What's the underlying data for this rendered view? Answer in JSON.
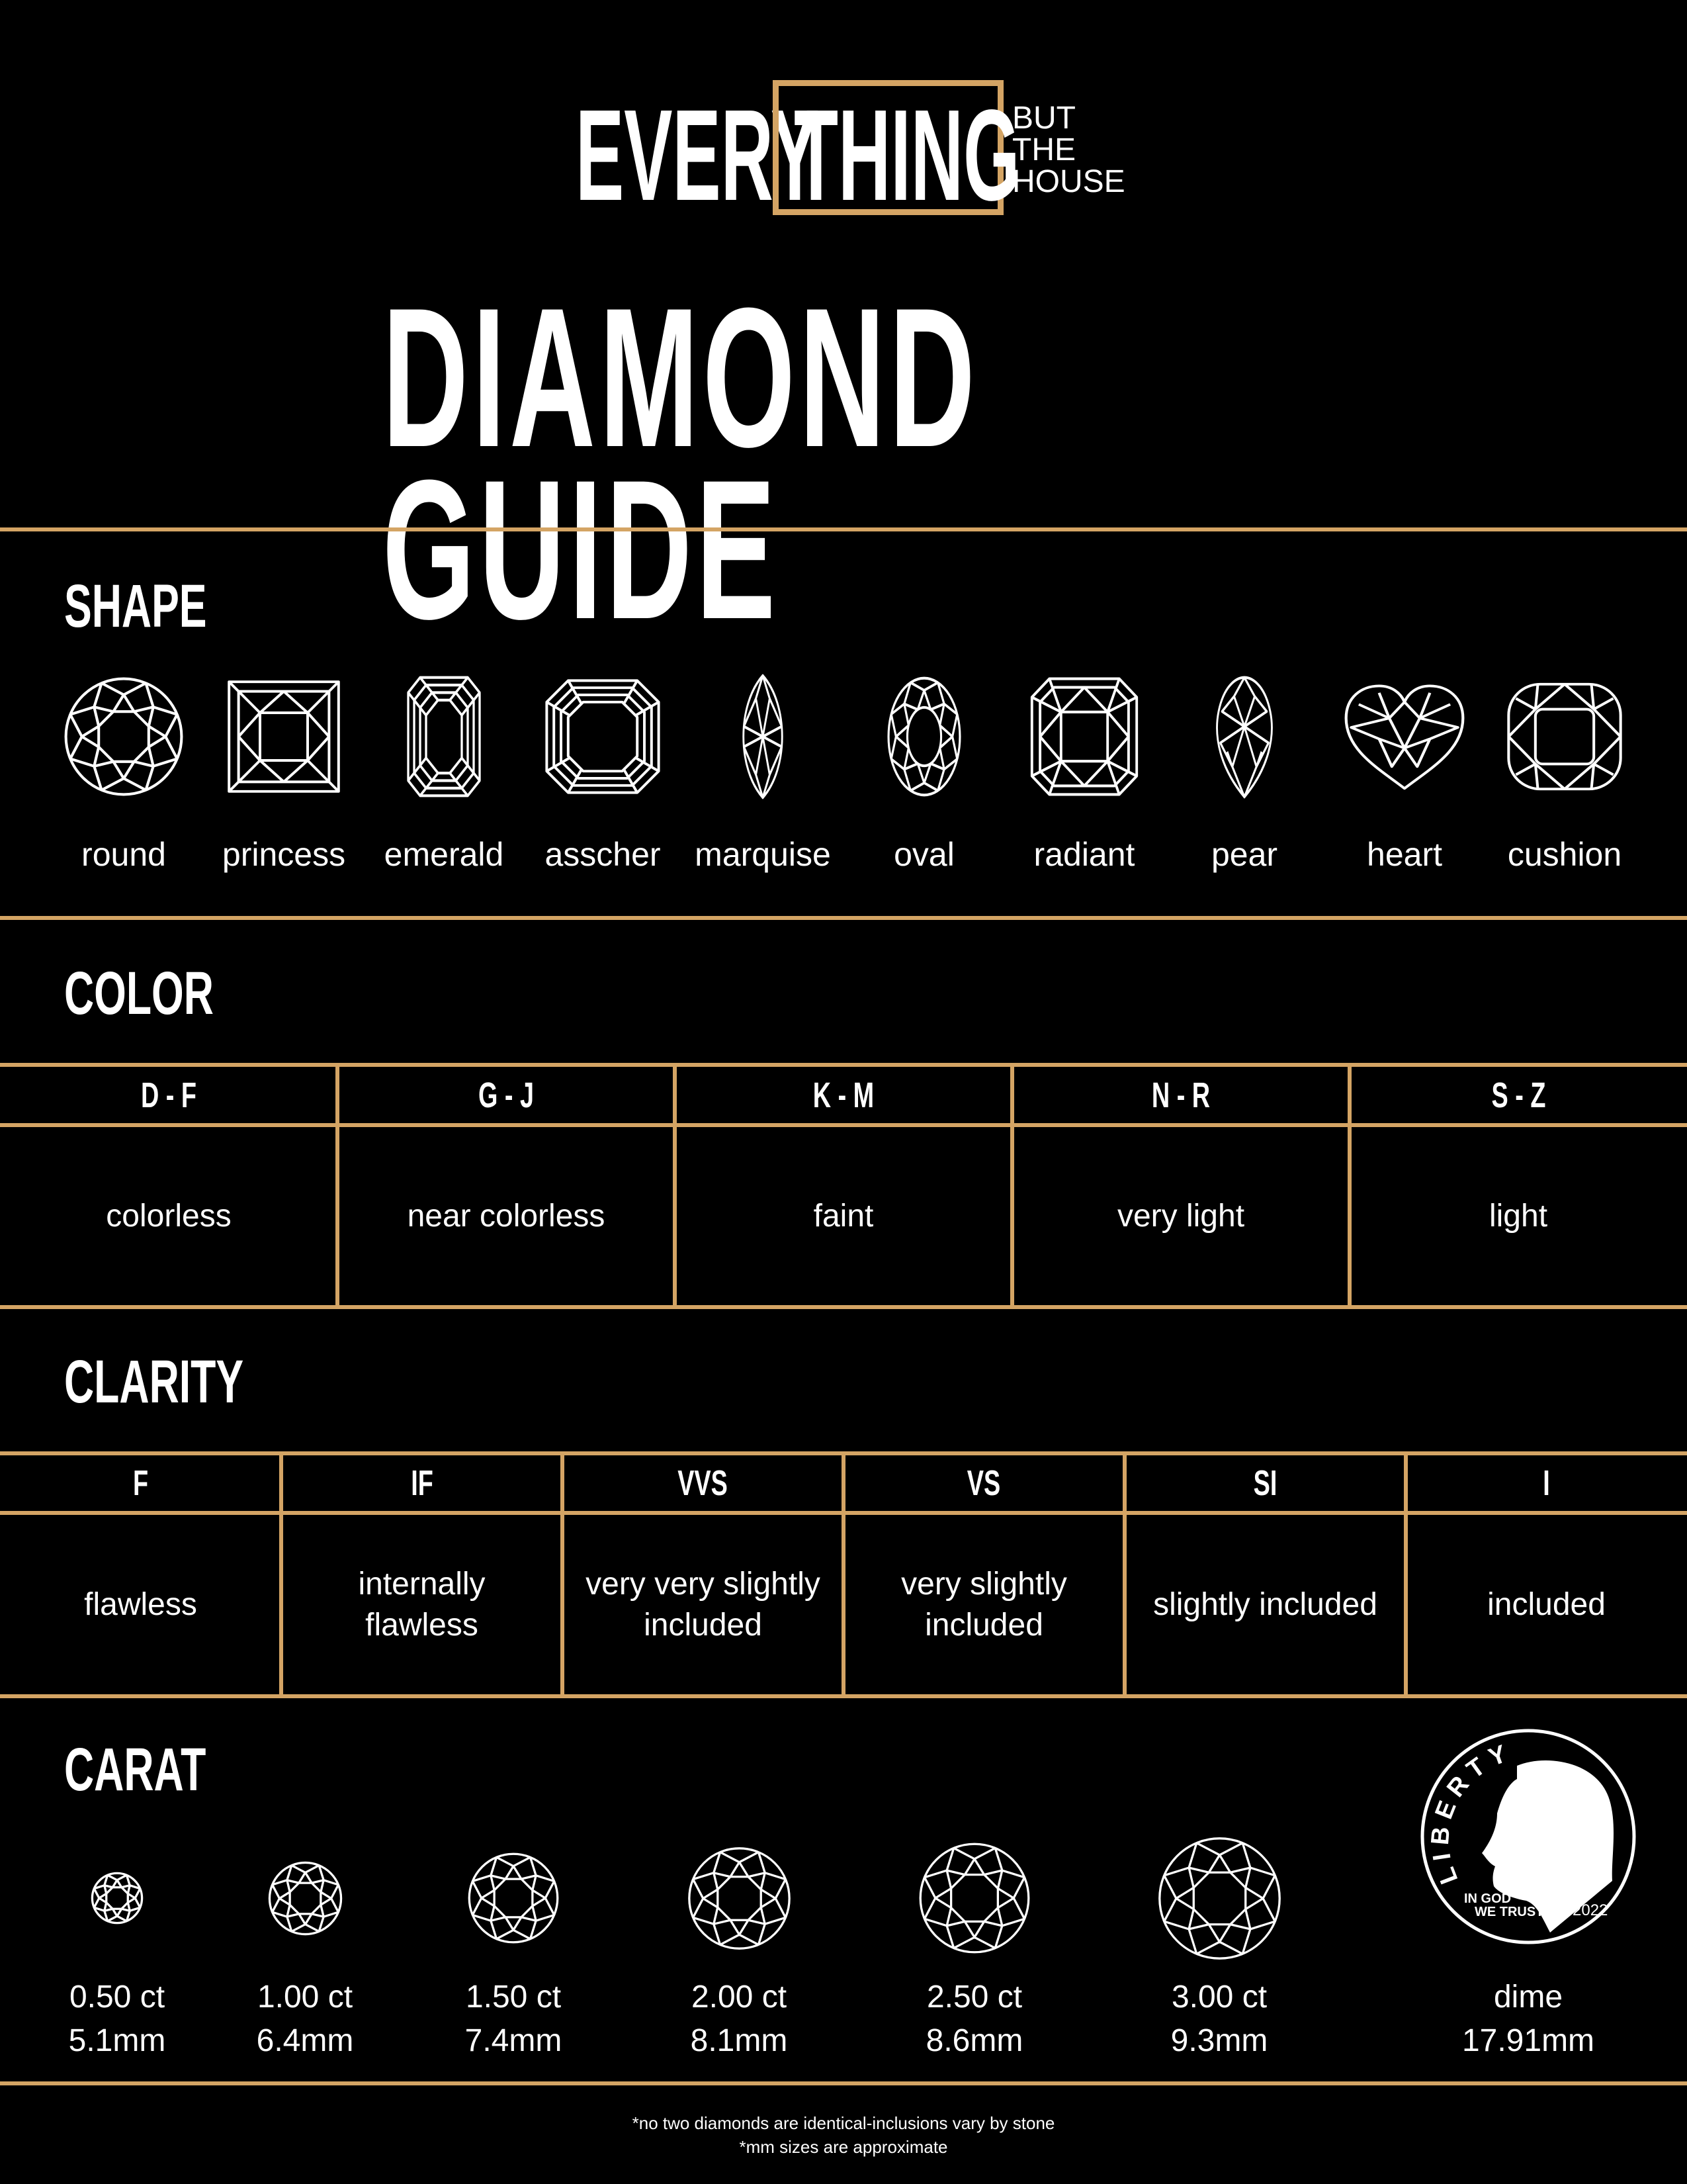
{
  "brand": {
    "word1": "EVERY",
    "word2": "THING",
    "tag_lines": [
      "BUT",
      "THE",
      "HOUSE"
    ],
    "accent_color": "#d4a464"
  },
  "title": "DIAMOND GUIDE",
  "shape": {
    "heading": "SHAPE",
    "items": [
      {
        "label": "round",
        "icon": "round-diamond-icon"
      },
      {
        "label": "princess",
        "icon": "princess-diamond-icon"
      },
      {
        "label": "emerald",
        "icon": "emerald-diamond-icon"
      },
      {
        "label": "asscher",
        "icon": "asscher-diamond-icon"
      },
      {
        "label": "marquise",
        "icon": "marquise-diamond-icon"
      },
      {
        "label": "oval",
        "icon": "oval-diamond-icon"
      },
      {
        "label": "radiant",
        "icon": "radiant-diamond-icon"
      },
      {
        "label": "pear",
        "icon": "pear-diamond-icon"
      },
      {
        "label": "heart",
        "icon": "heart-diamond-icon"
      },
      {
        "label": "cushion",
        "icon": "cushion-diamond-icon"
      }
    ]
  },
  "color": {
    "heading": "COLOR",
    "grades": [
      {
        "range": "D - F",
        "description": "colorless"
      },
      {
        "range": "G - J",
        "description": "near colorless"
      },
      {
        "range": "K - M",
        "description": "faint"
      },
      {
        "range": "N - R",
        "description": "very light"
      },
      {
        "range": "S - Z",
        "description": "light"
      }
    ]
  },
  "clarity": {
    "heading": "CLARITY",
    "grades": [
      {
        "range": "F",
        "description": "flawless"
      },
      {
        "range": "IF",
        "description": "internally\nflawless"
      },
      {
        "range": "VVS",
        "description": "very very slightly\nincluded"
      },
      {
        "range": "VS",
        "description": "very slightly\nincluded"
      },
      {
        "range": "SI",
        "description": "slightly included"
      },
      {
        "range": "I",
        "description": "included"
      }
    ]
  },
  "carat": {
    "heading": "CARAT",
    "items": [
      {
        "weight": "0.50 ct",
        "size": "5.1mm",
        "mm": 5.1
      },
      {
        "weight": "1.00 ct",
        "size": "6.4mm",
        "mm": 6.4
      },
      {
        "weight": "1.50 ct",
        "size": "7.4mm",
        "mm": 7.4
      },
      {
        "weight": "2.00 ct",
        "size": "8.1mm",
        "mm": 8.1
      },
      {
        "weight": "2.50 ct",
        "size": "8.6mm",
        "mm": 8.6
      },
      {
        "weight": "3.00 ct",
        "size": "9.3mm",
        "mm": 9.3
      }
    ],
    "reference": {
      "label": "dime",
      "size": "17.91mm",
      "coin_text": {
        "top": "LIBERTY",
        "motto_1": "IN GOD",
        "motto_2": "WE TRUST",
        "year": "2022"
      }
    }
  },
  "footnotes": [
    "*no two diamonds are identical-inclusions vary by stone",
    "*mm sizes are approximate"
  ]
}
